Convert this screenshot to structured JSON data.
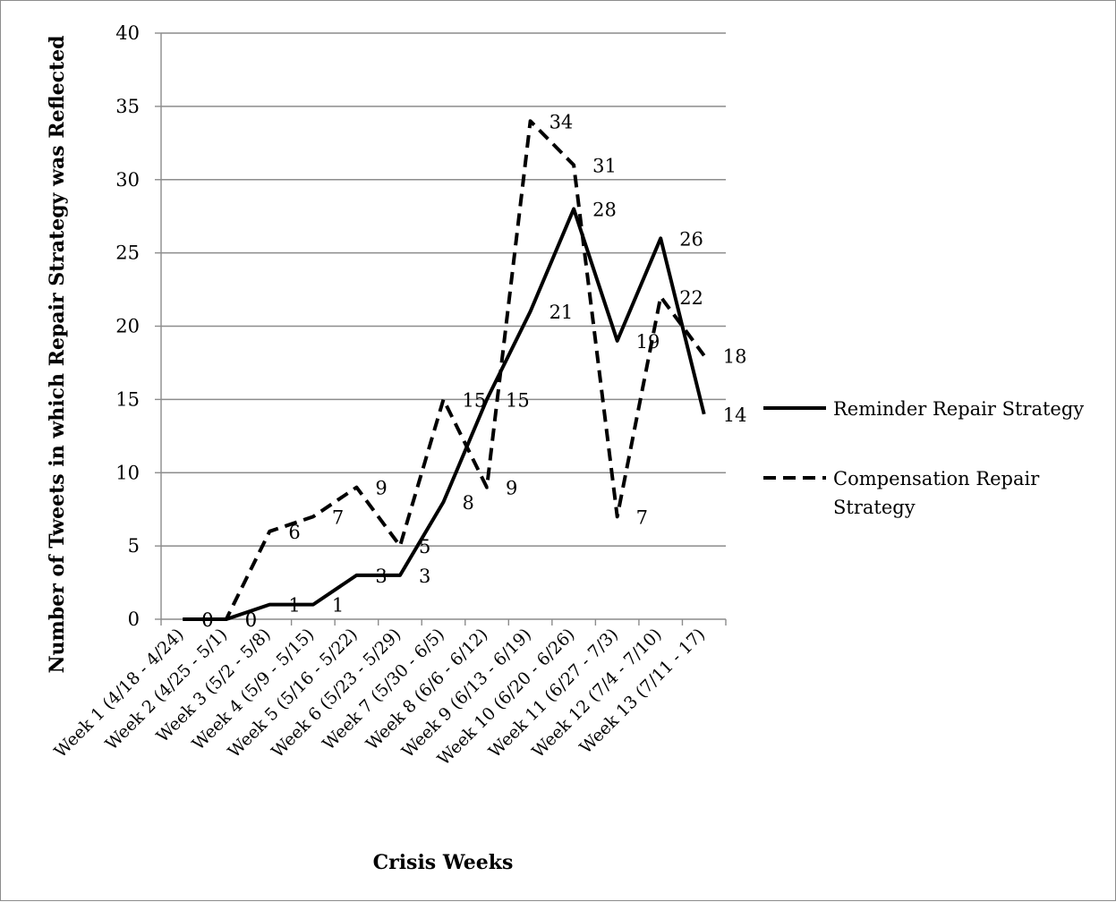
{
  "chart_data": {
    "type": "line",
    "title": "",
    "xlabel": "Crisis Weeks",
    "ylabel": "Number of Tweets in which Repair Strategy was Reflected",
    "ylim": [
      0,
      40
    ],
    "yticks": [
      "0",
      "5",
      "10",
      "15",
      "20",
      "25",
      "30",
      "35",
      "40"
    ],
    "grid": "horizontal",
    "legend_position": "right",
    "categories": [
      "Week 1 (4/18 - 4/24)",
      "Week 2 (4/25 - 5/1)",
      "Week 3 (5/2 - 5/8)",
      "Week 4 (5/9 - 5/15)",
      "Week 5 (5/16 - 5/22)",
      "Week 6 (5/23 - 5/29)",
      "Week 7 (5/30 - 6/5)",
      "Week 8 (6/6 - 6/12)",
      "Week 9 (6/13 - 6/19)",
      "Week 10 (6/20 - 6/26)",
      "Week 11 (6/27 - 7/3)",
      "Week 12 (7/4 - 7/10)",
      "Week 13 (7/11 - 17)"
    ],
    "series": [
      {
        "name": "Reminder Repair Strategy",
        "style": "solid",
        "color": "#000000",
        "values": [
          0,
          0,
          1,
          1,
          3,
          3,
          8,
          15,
          21,
          28,
          19,
          26,
          14
        ]
      },
      {
        "name": "Compensation Repair Strategy",
        "style": "dashed",
        "color": "#000000",
        "values": [
          0,
          0,
          6,
          7,
          9,
          5,
          15,
          9,
          34,
          31,
          7,
          22,
          18
        ]
      }
    ]
  }
}
